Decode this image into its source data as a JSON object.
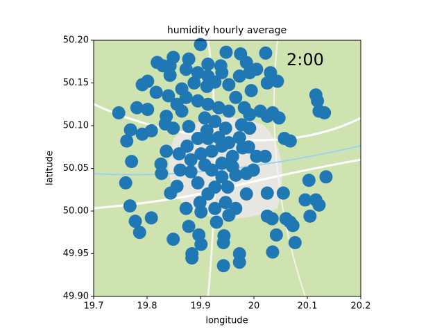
{
  "chart_data": {
    "type": "scatter",
    "title": "humidity hourly average",
    "annotation": "2:00",
    "x_label": "longitude",
    "y_label": "latitude",
    "color": "#1f77b4",
    "xlim": [
      19.7,
      20.2
    ],
    "xticks": [
      19.7,
      19.8,
      19.9,
      20.0,
      20.1,
      20.2
    ],
    "ylim": [
      49.9,
      50.2
    ],
    "yticks": [
      {
        "value": 49.9,
        "label": "49.90"
      },
      49.95,
      {
        "value": 50.0,
        "label": "50.00"
      },
      50.05,
      {
        "value": 50.1,
        "label": "50.10"
      },
      50.15,
      {
        "value": 50.2,
        "label": "50.20"
      }
    ],
    "x": [
      19.9,
      19.948,
      19.975,
      19.986,
      20.022,
      19.849,
      19.819,
      19.83,
      19.843,
      19.878,
      19.914,
      19.938,
      19.873,
      19.895,
      19.914,
      19.94,
      19.843,
      19.801,
      19.791,
      19.817,
      19.84,
      19.865,
      19.888,
      19.912,
      19.927,
      19.953,
      19.973,
      19.992,
      20.005,
      20.031,
      20.044,
      20.025,
      19.995,
      19.966,
      19.982,
      19.953,
      19.934,
      19.914,
      19.895,
      19.873,
      19.856,
      19.836,
      19.801,
      19.781,
      19.747,
      19.769,
      19.762,
      19.791,
      19.808,
      19.834,
      19.878,
      19.908,
      19.927,
      19.947,
      19.977,
      19.992,
      20.012,
      20.025,
      20.047,
      20.035,
      20.116,
      20.119,
      20.122,
      20.132,
      19.992,
      19.973,
      19.953,
      19.94,
      19.921,
      19.901,
      19.882,
      19.86,
      19.836,
      19.875,
      19.895,
      19.912,
      19.96,
      19.979,
      19.99,
      20.005,
      20.021,
      20.057,
      20.068,
      19.771,
      19.826,
      19.827,
      19.862,
      19.882,
      19.908,
      19.921,
      19.94,
      19.966,
      19.986,
      19.999,
      19.951,
      19.927,
      19.895,
      19.856,
      19.844,
      19.76,
      19.768,
      19.808,
      19.778,
      19.786,
      19.878,
      19.897,
      19.901,
      19.849,
      19.873,
      19.901,
      19.927,
      19.947,
      19.966,
      19.986,
      20.025,
      20.055,
      20.103,
      20.135,
      20.096,
      20.116,
      20.122,
      20.105,
      20.025,
      20.034,
      20.06,
      20.068,
      20.073,
      20.042,
      20.077,
      20.035,
      19.943,
      19.944,
      19.973,
      19.973,
      19.943,
      19.884,
      19.884,
      19.899,
      19.93,
      19.953,
      19.914,
      19.94,
      19.96,
      19.934,
      19.914,
      19.865,
      19.849
    ],
    "values": [
      50.195,
      50.186,
      50.184,
      50.174,
      50.185,
      50.18,
      50.174,
      50.17,
      50.17,
      50.178,
      50.172,
      50.17,
      50.166,
      50.162,
      50.158,
      50.162,
      50.159,
      50.152,
      50.148,
      50.139,
      50.135,
      50.143,
      50.15,
      50.146,
      50.151,
      50.148,
      50.158,
      50.162,
      50.166,
      50.162,
      50.152,
      50.15,
      50.141,
      50.133,
      50.121,
      50.117,
      50.121,
      50.125,
      50.129,
      50.133,
      50.125,
      50.111,
      50.119,
      50.121,
      50.115,
      50.095,
      50.082,
      50.09,
      50.094,
      50.102,
      50.099,
      50.109,
      50.105,
      50.097,
      50.101,
      50.113,
      50.117,
      50.111,
      50.109,
      50.115,
      50.136,
      50.129,
      50.117,
      50.115,
      50.097,
      50.086,
      50.08,
      50.076,
      50.07,
      50.067,
      50.06,
      50.067,
      50.07,
      50.076,
      50.085,
      50.094,
      50.064,
      50.074,
      50.075,
      50.064,
      50.064,
      50.085,
      50.082,
      50.058,
      50.055,
      50.044,
      50.048,
      50.046,
      50.054,
      50.048,
      50.04,
      50.042,
      50.044,
      50.048,
      50.028,
      50.028,
      50.033,
      50.029,
      50.021,
      50.033,
      50.006,
      49.992,
      49.988,
      49.975,
      49.982,
      49.972,
      49.961,
      49.967,
      50.003,
      49.999,
      50.003,
      50.01,
      50.003,
      50.02,
      50.021,
      50.021,
      50.036,
      50.04,
      50.013,
      50.013,
      50.007,
      49.994,
      49.994,
      49.991,
      49.991,
      49.987,
      49.983,
      49.972,
      49.963,
      49.952,
      49.963,
      49.971,
      49.95,
      49.94,
      49.936,
      49.95,
      49.945,
      50.01,
      49.987,
      49.995,
      50.02,
      50.056,
      50.052,
      50.086,
      50.085,
      50.117,
      50.097
    ]
  }
}
